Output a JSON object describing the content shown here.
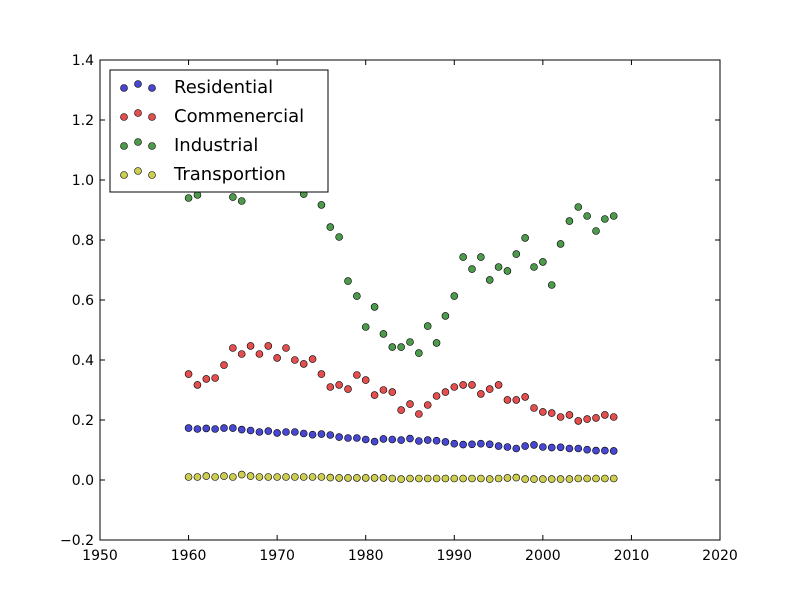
{
  "chart_data": {
    "type": "scatter",
    "title": "",
    "xlabel": "",
    "ylabel": "",
    "xlim": [
      1950,
      2020
    ],
    "ylim": [
      -0.2,
      1.4
    ],
    "x_ticks": [
      1950,
      1960,
      1970,
      1980,
      1990,
      2000,
      2010,
      2020
    ],
    "y_ticks": [
      -0.2,
      0.0,
      0.2,
      0.4,
      0.6,
      0.8,
      1.0,
      1.2,
      1.4
    ],
    "x_tick_labels": [
      "1950",
      "1960",
      "1970",
      "1980",
      "1990",
      "2000",
      "2010",
      "2020"
    ],
    "y_tick_labels": [
      "−0.2",
      "0.0",
      "0.2",
      "0.4",
      "0.6",
      "0.8",
      "1.0",
      "1.2",
      "1.4"
    ],
    "grid": false,
    "legend_position": "top-left",
    "x": [
      1960,
      1961,
      1962,
      1963,
      1964,
      1965,
      1966,
      1967,
      1968,
      1969,
      1970,
      1971,
      1972,
      1973,
      1974,
      1975,
      1976,
      1977,
      1978,
      1979,
      1980,
      1981,
      1982,
      1983,
      1984,
      1985,
      1986,
      1987,
      1988,
      1989,
      1990,
      1991,
      1992,
      1993,
      1994,
      1995,
      1996,
      1997,
      1998,
      1999,
      2000,
      2001,
      2002,
      2003,
      2004,
      2005,
      2006,
      2007,
      2008
    ],
    "series": [
      {
        "name": "Residential",
        "color": "#3333cc",
        "values": [
          0.173,
          0.17,
          0.172,
          0.17,
          0.173,
          0.173,
          0.168,
          0.165,
          0.16,
          0.163,
          0.157,
          0.16,
          0.16,
          0.155,
          0.151,
          0.153,
          0.15,
          0.143,
          0.14,
          0.14,
          0.135,
          0.128,
          0.137,
          0.135,
          0.133,
          0.138,
          0.13,
          0.133,
          0.131,
          0.127,
          0.121,
          0.118,
          0.119,
          0.121,
          0.119,
          0.113,
          0.11,
          0.105,
          0.113,
          0.117,
          0.11,
          0.108,
          0.109,
          0.105,
          0.105,
          0.101,
          0.098,
          0.098,
          0.097
        ]
      },
      {
        "name": "Commenercial",
        "color": "#e03c3c",
        "values": [
          0.353,
          0.317,
          0.337,
          0.34,
          0.383,
          0.44,
          0.42,
          0.447,
          0.42,
          0.447,
          0.407,
          0.44,
          0.4,
          0.387,
          0.403,
          0.353,
          0.31,
          0.317,
          0.303,
          0.35,
          0.333,
          0.283,
          0.3,
          0.293,
          0.233,
          0.253,
          0.22,
          0.25,
          0.28,
          0.293,
          0.31,
          0.317,
          0.317,
          0.287,
          0.303,
          0.317,
          0.267,
          0.267,
          0.277,
          0.24,
          0.227,
          0.223,
          0.21,
          0.217,
          0.197,
          0.203,
          0.207,
          0.217,
          0.21
        ]
      },
      {
        "name": "Industrial",
        "color": "#3a8f3a",
        "values": [
          0.94,
          0.95,
          null,
          null,
          null,
          0.943,
          0.93,
          null,
          null,
          null,
          null,
          null,
          null,
          0.953,
          null,
          0.917,
          0.843,
          0.81,
          0.663,
          0.613,
          0.51,
          0.577,
          0.487,
          0.443,
          0.443,
          0.46,
          0.423,
          0.513,
          0.457,
          0.547,
          0.613,
          0.743,
          0.703,
          0.743,
          0.667,
          0.71,
          0.697,
          0.753,
          0.807,
          0.71,
          0.727,
          0.65,
          0.787,
          0.863,
          0.91,
          0.88,
          0.83,
          0.87,
          0.88
        ]
      },
      {
        "name": "Transportion",
        "color": "#c8c83c",
        "values": [
          0.01,
          0.01,
          0.013,
          0.01,
          0.013,
          0.01,
          0.018,
          0.013,
          0.01,
          0.01,
          0.01,
          0.01,
          0.01,
          0.01,
          0.01,
          0.01,
          0.008,
          0.007,
          0.007,
          0.007,
          0.007,
          0.007,
          0.007,
          0.005,
          0.003,
          0.005,
          0.005,
          0.005,
          0.005,
          0.005,
          0.005,
          0.005,
          0.005,
          0.005,
          0.003,
          0.005,
          0.007,
          0.008,
          0.003,
          0.003,
          0.003,
          0.003,
          0.003,
          0.003,
          0.005,
          0.005,
          0.005,
          0.005,
          0.005
        ]
      }
    ]
  }
}
